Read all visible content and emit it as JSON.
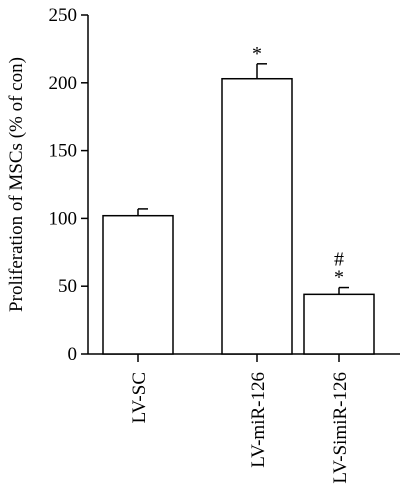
{
  "chart_data": {
    "type": "bar",
    "categories": [
      "LV-SC",
      "LV-miR-126",
      "LV-SimiR-126"
    ],
    "values": [
      102,
      203,
      44
    ],
    "errors": [
      5,
      11,
      5
    ],
    "annotations": [
      [],
      [
        "*"
      ],
      [
        "*",
        "#"
      ]
    ],
    "ylabel": "Proliferation of MSCs (% of con)",
    "ylim": [
      0,
      250
    ],
    "yticks": [
      0,
      50,
      100,
      150,
      200,
      250
    ],
    "grid": false,
    "bar_fill": "#ffffff",
    "stroke": "#000000"
  }
}
